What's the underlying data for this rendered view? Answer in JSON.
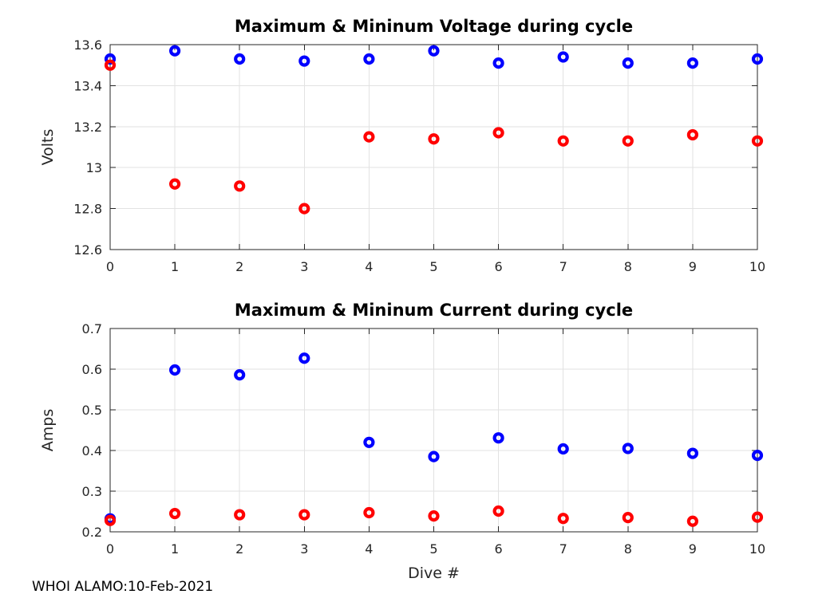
{
  "figure": {
    "footer": "WHOI ALAMO:10-Feb-2021"
  },
  "colors": {
    "series_max": "#0000ff",
    "series_min": "#ff0000",
    "grid": "#e2e2e2",
    "axis": "#262626",
    "title": "#000000"
  },
  "chart_data": [
    {
      "type": "scatter",
      "title": "Maximum & Mininum Voltage during cycle",
      "xlabel": "",
      "ylabel": "Volts",
      "marker": "open-circle",
      "grid": true,
      "legend": null,
      "x": [
        0,
        1,
        2,
        3,
        4,
        5,
        6,
        7,
        8,
        9,
        10
      ],
      "series": [
        {
          "name": "max",
          "color": "#0000ff",
          "values": [
            13.53,
            13.57,
            13.53,
            13.52,
            13.53,
            13.57,
            13.51,
            13.54,
            13.51,
            13.51,
            13.53
          ]
        },
        {
          "name": "min",
          "color": "#ff0000",
          "values": [
            13.5,
            12.92,
            12.91,
            12.8,
            13.15,
            13.14,
            13.17,
            13.13,
            13.13,
            13.16,
            13.13
          ]
        }
      ],
      "xlim": [
        0,
        10
      ],
      "ylim": [
        12.6,
        13.6
      ],
      "xticks": [
        0,
        1,
        2,
        3,
        4,
        5,
        6,
        7,
        8,
        9,
        10
      ],
      "xtick_labels": [
        "0",
        "1",
        "2",
        "3",
        "4",
        "5",
        "6",
        "7",
        "8",
        "9",
        "10"
      ],
      "yticks": [
        12.6,
        12.8,
        13,
        13.2,
        13.4,
        13.6
      ],
      "ytick_labels": [
        "12.6",
        "12.8",
        "13",
        "13.2",
        "13.4",
        "13.6"
      ]
    },
    {
      "type": "scatter",
      "title": "Maximum & Mininum Current during cycle",
      "xlabel": "Dive #",
      "ylabel": "Amps",
      "marker": "open-circle",
      "grid": true,
      "legend": null,
      "x": [
        0,
        1,
        2,
        3,
        4,
        5,
        6,
        7,
        8,
        9,
        10
      ],
      "series": [
        {
          "name": "max",
          "color": "#0000ff",
          "values": [
            0.232,
            0.598,
            0.586,
            0.627,
            0.42,
            0.385,
            0.431,
            0.404,
            0.405,
            0.393,
            0.388
          ]
        },
        {
          "name": "min",
          "color": "#ff0000",
          "values": [
            0.228,
            0.245,
            0.242,
            0.242,
            0.247,
            0.239,
            0.251,
            0.233,
            0.235,
            0.226,
            0.236
          ]
        }
      ],
      "xlim": [
        0,
        10
      ],
      "ylim": [
        0.2,
        0.7
      ],
      "xticks": [
        0,
        1,
        2,
        3,
        4,
        5,
        6,
        7,
        8,
        9,
        10
      ],
      "xtick_labels": [
        "0",
        "1",
        "2",
        "3",
        "4",
        "5",
        "6",
        "7",
        "8",
        "9",
        "10"
      ],
      "yticks": [
        0.2,
        0.3,
        0.4,
        0.5,
        0.6,
        0.7
      ],
      "ytick_labels": [
        "0.2",
        "0.3",
        "0.4",
        "0.5",
        "0.6",
        "0.7"
      ]
    }
  ]
}
